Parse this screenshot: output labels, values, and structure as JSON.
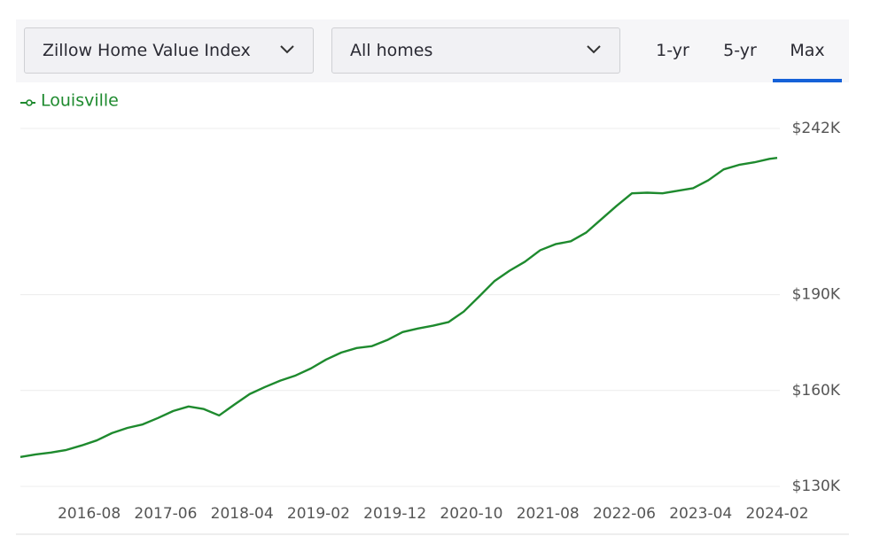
{
  "controls": {
    "index_select": "Zillow Home Value Index",
    "home_select": "All homes",
    "ranges": [
      "1-yr",
      "5-yr",
      "Max"
    ],
    "active_range": 2
  },
  "chart_data": {
    "type": "line",
    "x": [
      "2015-11",
      "2016-01",
      "2016-03",
      "2016-05",
      "2016-07",
      "2016-09",
      "2016-11",
      "2017-01",
      "2017-03",
      "2017-05",
      "2017-07",
      "2017-09",
      "2017-11",
      "2018-01",
      "2018-03",
      "2018-05",
      "2018-07",
      "2018-09",
      "2018-11",
      "2019-01",
      "2019-03",
      "2019-05",
      "2019-07",
      "2019-09",
      "2019-11",
      "2020-01",
      "2020-03",
      "2020-05",
      "2020-07",
      "2020-09",
      "2020-11",
      "2021-01",
      "2021-03",
      "2021-05",
      "2021-07",
      "2021-09",
      "2021-11",
      "2022-01",
      "2022-03",
      "2022-05",
      "2022-07",
      "2022-09",
      "2022-11",
      "2023-01",
      "2023-03",
      "2023-05",
      "2023-07",
      "2023-09",
      "2023-11",
      "2024-01",
      "2024-02"
    ],
    "series": [
      {
        "name": "Louisville",
        "color": "#1e8a2e",
        "values": [
          139200,
          140000,
          140600,
          141400,
          142800,
          144400,
          146700,
          148300,
          149400,
          151400,
          153600,
          155000,
          154200,
          152200,
          155600,
          158900,
          161100,
          163100,
          164700,
          166900,
          169700,
          171900,
          173300,
          173900,
          175800,
          178300,
          179400,
          180300,
          181400,
          184700,
          189400,
          194200,
          197500,
          200300,
          203900,
          205800,
          206700,
          209400,
          213600,
          217800,
          221700,
          221900,
          221700,
          222500,
          223300,
          225800,
          229200,
          230600,
          231400,
          232500,
          232800
        ]
      }
    ],
    "xlim": [
      "2015-11",
      "2024-02"
    ],
    "xticks": [
      "2016-08",
      "2017-06",
      "2018-04",
      "2019-02",
      "2019-12",
      "2020-10",
      "2021-08",
      "2022-06",
      "2023-04",
      "2024-02"
    ],
    "ylim": [
      130000,
      242000
    ],
    "yticks": [
      {
        "value": 130000,
        "label": "$130K"
      },
      {
        "value": 160000,
        "label": "$160K"
      },
      {
        "value": 190000,
        "label": "$190K"
      },
      {
        "value": 242000,
        "label": "$242K"
      }
    ],
    "grid": true
  }
}
